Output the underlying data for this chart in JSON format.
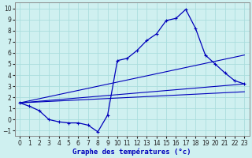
{
  "title": "Graphe des températures (°c)",
  "bg_color": "#cff0f0",
  "grid_color": "#aadddd",
  "line_color": "#0000bb",
  "xlim": [
    -0.5,
    23.5
  ],
  "ylim": [
    -1.5,
    10.5
  ],
  "yticks": [
    -1,
    0,
    1,
    2,
    3,
    4,
    5,
    6,
    7,
    8,
    9,
    10
  ],
  "xticks": [
    0,
    1,
    2,
    3,
    4,
    5,
    6,
    7,
    8,
    9,
    10,
    11,
    12,
    13,
    14,
    15,
    16,
    17,
    18,
    19,
    20,
    21,
    22,
    23
  ],
  "curve_main_x": [
    0,
    1,
    2,
    3,
    4,
    5,
    6,
    7,
    8,
    9,
    10,
    11,
    12,
    13,
    14,
    15,
    16,
    17,
    18,
    19,
    20,
    21,
    22,
    23
  ],
  "curve_main_y": [
    1.5,
    1.2,
    0.8,
    0.0,
    -0.2,
    -0.3,
    -0.3,
    -0.5,
    -1.1,
    0.4,
    5.3,
    5.5,
    6.2,
    7.1,
    7.7,
    8.9,
    9.1,
    9.9,
    8.2,
    5.8,
    5.0,
    4.2,
    3.5,
    3.2
  ],
  "line1_x": [
    0,
    23
  ],
  "line1_y": [
    1.5,
    5.8
  ],
  "line2_x": [
    0,
    23
  ],
  "line2_y": [
    1.5,
    3.2
  ],
  "line3_x": [
    0,
    23
  ],
  "line3_y": [
    1.5,
    2.5
  ],
  "spine_color": "#888888",
  "xlabel_fontsize": 6.5,
  "tick_fontsize": 5.5,
  "lw_main": 0.9,
  "lw_lines": 0.8
}
